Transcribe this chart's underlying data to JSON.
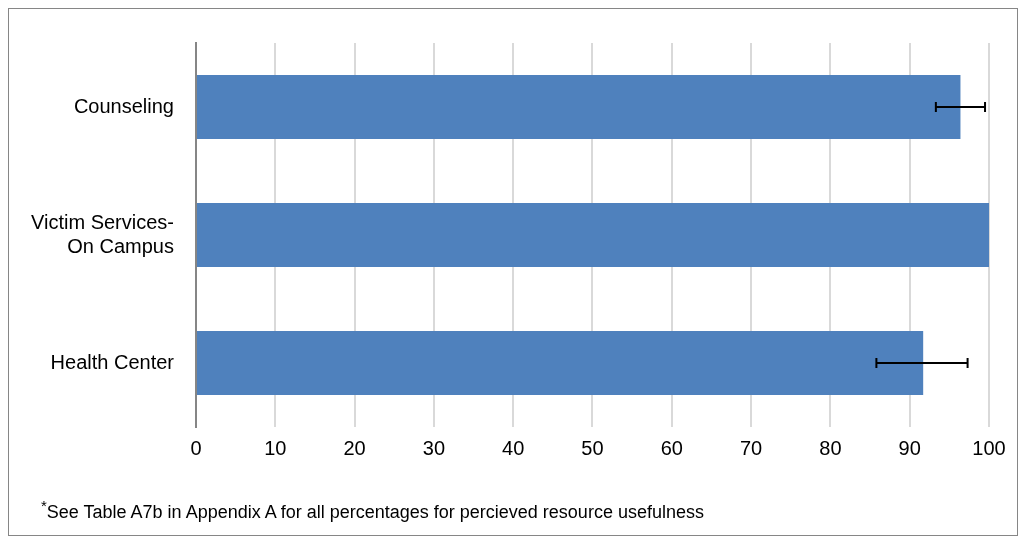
{
  "chart_data": {
    "type": "bar",
    "orientation": "horizontal",
    "categories": [
      "Counseling",
      "Victim Services-On Campus",
      "Health Center"
    ],
    "values": [
      96.4,
      100,
      91.7
    ],
    "color": "#4f81bd",
    "errors": [
      [
        93.3,
        99.5
      ],
      null,
      [
        85.8,
        97.3
      ]
    ],
    "xlim": [
      0,
      100
    ],
    "xticks": [
      0,
      10,
      20,
      30,
      40,
      50,
      60,
      70,
      80,
      90,
      100
    ],
    "grid": "x",
    "legend": false,
    "annotations": [
      "$^{*}$See Table A7b in Appendix A for all percentages for percieved resource usefulness"
    ]
  }
}
